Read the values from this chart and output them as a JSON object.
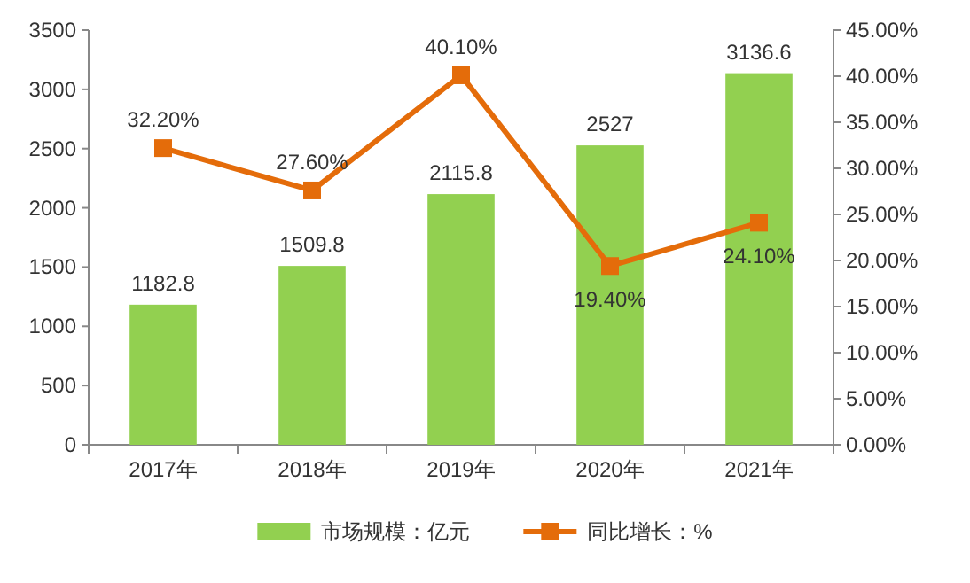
{
  "chart_data": {
    "type": "bar",
    "categories": [
      "2017年",
      "2018年",
      "2019年",
      "2020年",
      "2021年"
    ],
    "series": [
      {
        "name": "市场规模：亿元",
        "color": "#92d050",
        "values": [
          1182.8,
          1509.8,
          2115.8,
          2527,
          3136.6
        ],
        "value_labels": [
          "1182.8",
          "1509.8",
          "2115.8",
          "2527",
          "3136.6"
        ]
      },
      {
        "name": "同比增长：%",
        "type": "line",
        "axis": "y2",
        "color": "#e46c0a",
        "marker": "square",
        "values": [
          32.2,
          27.6,
          40.1,
          19.4,
          24.1
        ],
        "value_labels": [
          "32.20%",
          "27.60%",
          "40.10%",
          "19.40%",
          "24.10%"
        ]
      }
    ],
    "ylim": [
      0,
      3500
    ],
    "yticks": [
      0,
      500,
      1000,
      1500,
      2000,
      2500,
      3000,
      3500
    ],
    "y2lim": [
      0,
      45
    ],
    "y2ticks": [
      {
        "value": 0,
        "label": "0.00%"
      },
      {
        "value": 5,
        "label": "5.00%"
      },
      {
        "value": 10,
        "label": "10.00%"
      },
      {
        "value": 15,
        "label": "15.00%"
      },
      {
        "value": 20,
        "label": "20.00%"
      },
      {
        "value": 25,
        "label": "25.00%"
      },
      {
        "value": 30,
        "label": "30.00%"
      },
      {
        "value": 35,
        "label": "35.00%"
      },
      {
        "value": 40,
        "label": "40.00%"
      },
      {
        "value": 45,
        "label": "45.00%"
      }
    ],
    "legend": "bottom"
  }
}
